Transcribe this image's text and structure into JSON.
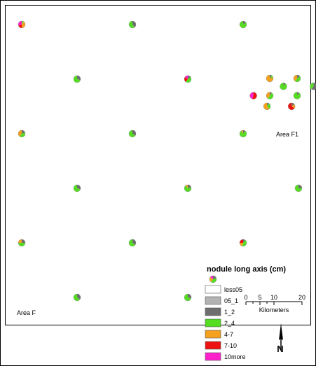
{
  "map": {
    "area_labels": [
      "Area F",
      "Area F1"
    ],
    "categories": [
      {
        "label": "less05",
        "color": "#ffffff"
      },
      {
        "label": "05_1",
        "color": "#b3b3b3"
      },
      {
        "label": "1_2",
        "color": "#6e6e6e"
      },
      {
        "label": "2_4",
        "color": "#55dd22"
      },
      {
        "label": "4-7",
        "color": "#f5a01e"
      },
      {
        "label": "7-10",
        "color": "#ee1111"
      },
      {
        "label": "10more",
        "color": "#ff22cc"
      }
    ],
    "sites": [
      {
        "col": 0,
        "row": 0,
        "v": [
          0,
          0,
          0,
          10,
          40,
          20,
          30
        ]
      },
      {
        "col": 2,
        "row": 0,
        "v": [
          0,
          0,
          40,
          60,
          0,
          0,
          0
        ]
      },
      {
        "col": 4,
        "row": 0,
        "v": [
          0,
          0,
          15,
          85,
          0,
          0,
          0
        ]
      },
      {
        "col": 1,
        "row": 1,
        "v": [
          0,
          0,
          30,
          70,
          0,
          0,
          0
        ]
      },
      {
        "col": 3,
        "row": 1,
        "v": [
          0,
          0,
          15,
          45,
          0,
          25,
          15
        ]
      },
      {
        "col": 0,
        "row": 2,
        "v": [
          0,
          0,
          20,
          40,
          40,
          0,
          0
        ]
      },
      {
        "col": 2,
        "row": 2,
        "v": [
          0,
          0,
          35,
          65,
          0,
          0,
          0
        ]
      },
      {
        "col": 4,
        "row": 2,
        "v": [
          0,
          0,
          10,
          80,
          10,
          0,
          0
        ]
      },
      {
        "col": 1,
        "row": 3,
        "v": [
          0,
          0,
          30,
          70,
          0,
          0,
          0
        ]
      },
      {
        "col": 3,
        "row": 3,
        "v": [
          0,
          0,
          20,
          70,
          10,
          0,
          0
        ]
      },
      {
        "col": 5,
        "row": 3,
        "v": [
          0,
          0,
          25,
          75,
          0,
          0,
          0
        ]
      },
      {
        "col": 0,
        "row": 4,
        "v": [
          0,
          0,
          25,
          50,
          25,
          0,
          0
        ]
      },
      {
        "col": 2,
        "row": 4,
        "v": [
          0,
          0,
          35,
          65,
          0,
          0,
          0
        ]
      },
      {
        "col": 4,
        "row": 4,
        "v": [
          0,
          0,
          10,
          45,
          20,
          25,
          0
        ]
      },
      {
        "col": 1,
        "row": 5,
        "v": [
          0,
          0,
          35,
          65,
          0,
          0,
          0
        ]
      },
      {
        "col": 3,
        "row": 5,
        "v": [
          0,
          0,
          30,
          70,
          0,
          0,
          0
        ]
      }
    ],
    "cluster_sites": [
      {
        "col": 0,
        "row": 0,
        "v": [
          0,
          0,
          10,
          10,
          80,
          0,
          0
        ]
      },
      {
        "col": 1,
        "row": 0,
        "v": [
          0,
          0,
          15,
          45,
          40,
          0,
          0
        ]
      },
      {
        "col": 0.5,
        "row": 0.6,
        "v": [
          0,
          0,
          10,
          90,
          0,
          0,
          0
        ]
      },
      {
        "col": 1.6,
        "row": 0.6,
        "v": [
          0,
          0,
          60,
          40,
          0,
          0,
          0
        ]
      },
      {
        "col": 0,
        "row": 1.3,
        "v": [
          0,
          0,
          10,
          50,
          40,
          0,
          0
        ]
      },
      {
        "col": 1,
        "row": 1.3,
        "v": [
          0,
          0,
          10,
          90,
          0,
          0,
          0
        ]
      },
      {
        "col": -0.6,
        "row": 1.3,
        "v": [
          0,
          0,
          0,
          0,
          0,
          55,
          45
        ]
      },
      {
        "col": -0.1,
        "row": 2.1,
        "v": [
          0,
          0,
          10,
          30,
          60,
          0,
          0
        ]
      },
      {
        "col": 0.8,
        "row": 2.1,
        "v": [
          0,
          0,
          15,
          0,
          20,
          65,
          0
        ]
      }
    ],
    "legend": {
      "title": "nodule long axis (cm)"
    },
    "scale_bar": {
      "ticks": [
        0,
        5,
        10,
        20
      ],
      "unit": "Kilometers"
    },
    "north_arrow": {
      "icon": "north-arrow-icon",
      "label": "N"
    }
  }
}
